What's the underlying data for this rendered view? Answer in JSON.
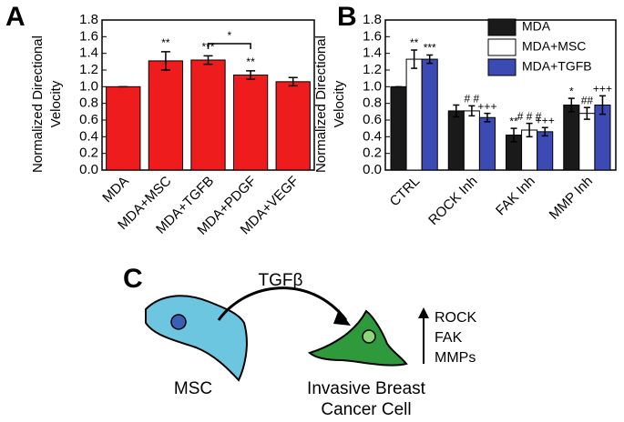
{
  "chart_data": [
    {
      "type": "bar",
      "panel": "A",
      "ylabel": [
        "Normalized Directional",
        "Velocity"
      ],
      "categories": [
        "MDA",
        "MDA+MSC",
        "MDA+TGFB",
        "MDA+PDGF",
        "MDA+VEGF"
      ],
      "values": [
        1.0,
        1.31,
        1.32,
        1.14,
        1.06
      ],
      "errors": [
        0,
        0.11,
        0.05,
        0.05,
        0.05
      ],
      "annotations": [
        null,
        "**",
        "***",
        "**",
        null
      ],
      "bracket_label": "*",
      "color": "#ee1c1c",
      "ylim": [
        0,
        1.8
      ],
      "yticks": [
        {
          "value": 0,
          "label": "0.0"
        },
        0.2,
        0.4,
        0.6,
        0.8,
        {
          "value": 1,
          "label": "1.0"
        },
        1.2,
        1.4,
        1.6,
        1.8
      ]
    },
    {
      "type": "bar",
      "panel": "B",
      "ylabel": [
        "Normalized Directional",
        "Velocity"
      ],
      "categories": [
        "CTRL",
        "ROCK Inh",
        "FAK Inh",
        "MMP Inh"
      ],
      "series": [
        {
          "name": "MDA",
          "color": "#1a1a1a",
          "values": [
            1.0,
            0.71,
            0.42,
            0.78
          ],
          "errors": [
            0,
            0.07,
            0.08,
            0.08
          ],
          "annotations": [
            null,
            null,
            "**",
            "*"
          ]
        },
        {
          "name": "MDA+MSC",
          "color": "#ffffff",
          "values": [
            1.33,
            0.71,
            0.48,
            0.68
          ],
          "errors": [
            0.11,
            0.06,
            0.08,
            0.07
          ],
          "annotations": [
            "**",
            "# #",
            "# # #",
            "##"
          ]
        },
        {
          "name": "MDA+TGFB",
          "color": "#3b4bb3",
          "values": [
            1.33,
            0.63,
            0.46,
            0.78
          ],
          "errors": [
            0.05,
            0.05,
            0.05,
            0.11
          ],
          "annotations": [
            "***",
            "+++",
            "+++",
            "+++"
          ]
        }
      ],
      "legend": "upper right",
      "ylim": [
        0,
        1.8
      ],
      "yticks": [
        {
          "value": 0,
          "label": "0.0"
        },
        0.2,
        0.4,
        0.6,
        0.8,
        {
          "value": 1,
          "label": "1.0"
        },
        1.2,
        1.4,
        1.6,
        1.8
      ]
    }
  ],
  "diagram": {
    "panel": "C",
    "arrow_label": "TGFβ",
    "source": "MSC",
    "target": [
      "Invasive Breast",
      "Cancer Cell"
    ],
    "effects": [
      "ROCK",
      "FAK",
      "MMPs"
    ]
  }
}
